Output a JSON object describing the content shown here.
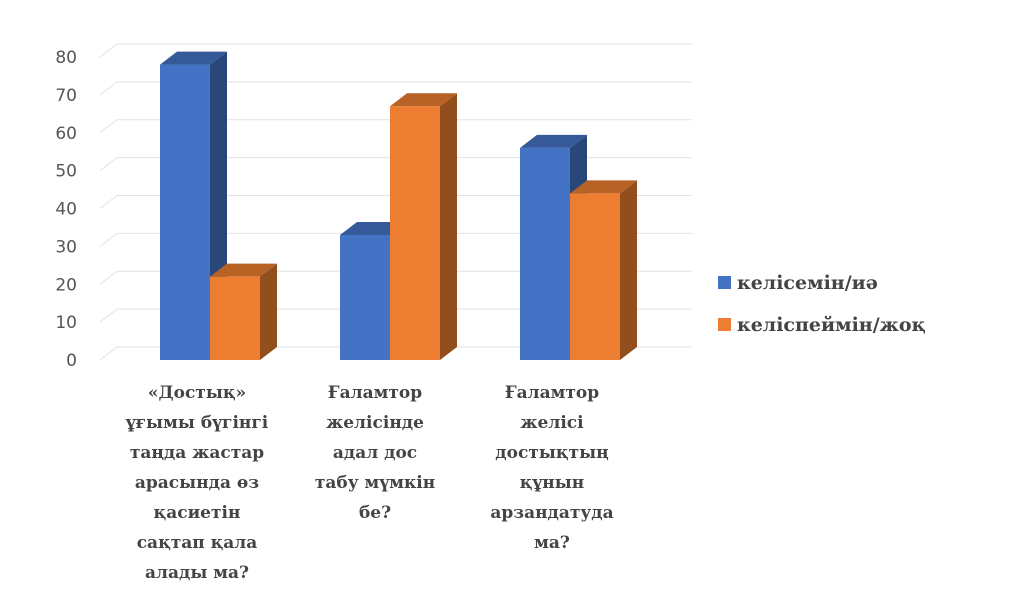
{
  "chart_data": {
    "type": "bar",
    "style": "3d-clustered-column",
    "categories": [
      [
        "«Достық»",
        "ұғымы бүгінгі",
        "таңда жастар",
        "арасында өз",
        "қасиетін",
        "сақтап қала",
        "алады ма?"
      ],
      [
        "Ғаламтор",
        "желісінде",
        "адал дос",
        "табу мүмкін",
        "бе?"
      ],
      [
        "Ғаламтор",
        "желісі",
        "достықтың",
        "құнын",
        "арзандатуда",
        "ма?"
      ]
    ],
    "series": [
      {
        "name": "келісемін/иә",
        "values": [
          78,
          33,
          56
        ],
        "color": "#4472C4"
      },
      {
        "name": "келіспеймін/жоқ",
        "values": [
          22,
          67,
          44
        ],
        "color": "#ED7D31"
      }
    ],
    "ylim": [
      0,
      80
    ],
    "yticks": [
      "0",
      "10",
      "20",
      "30",
      "40",
      "50",
      "60",
      "70",
      "80"
    ],
    "grid": true,
    "legend_position": "right",
    "title": "",
    "xlabel": "",
    "ylabel": ""
  }
}
